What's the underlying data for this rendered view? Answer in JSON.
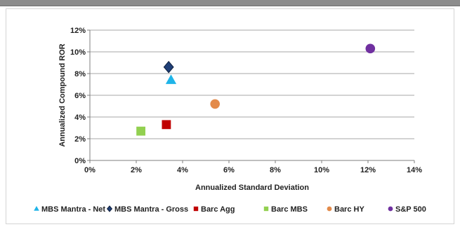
{
  "chart_data": {
    "type": "scatter",
    "xlabel": "Annualized Standard Deviation",
    "ylabel": "Annualized Compound ROR",
    "xlim": [
      0,
      14
    ],
    "ylim": [
      0,
      12
    ],
    "x_ticks": [
      0,
      2,
      4,
      6,
      8,
      10,
      12,
      14
    ],
    "y_ticks": [
      0,
      2,
      4,
      6,
      8,
      10,
      12
    ],
    "x_tick_labels": [
      "0%",
      "2%",
      "4%",
      "6%",
      "8%",
      "10%",
      "12%",
      "14%"
    ],
    "y_tick_labels": [
      "0%",
      "2%",
      "4%",
      "6%",
      "8%",
      "10%",
      "12%"
    ],
    "grid": "horizontal",
    "legend": "bottom",
    "series": [
      {
        "name": "MBS Mantra - Net",
        "x": 3.5,
        "y": 7.4,
        "marker": "triangle",
        "color": "#1fb4e8"
      },
      {
        "name": "MBS Mantra - Gross",
        "x": 3.4,
        "y": 8.6,
        "marker": "diamond",
        "color": "#1f3f77"
      },
      {
        "name": "Barc Agg",
        "x": 3.3,
        "y": 3.3,
        "marker": "square",
        "color": "#c00000"
      },
      {
        "name": "Barc MBS",
        "x": 2.2,
        "y": 2.7,
        "marker": "square",
        "color": "#92d050"
      },
      {
        "name": "Barc HY",
        "x": 5.4,
        "y": 5.2,
        "marker": "circle",
        "color": "#e38a4a"
      },
      {
        "name": "S&P 500",
        "x": 12.1,
        "y": 10.3,
        "marker": "circle",
        "color": "#7030a0"
      }
    ]
  }
}
